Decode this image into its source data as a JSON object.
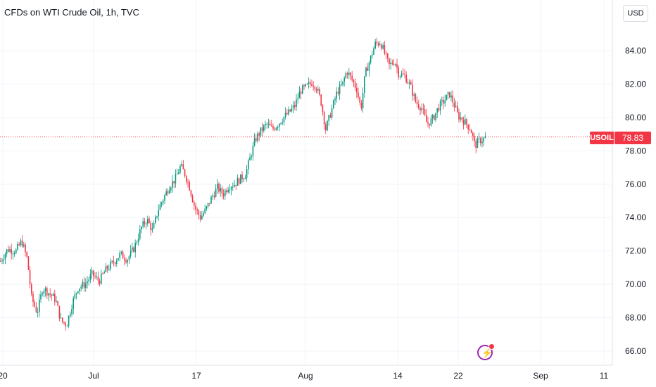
{
  "header": {
    "title": "CFDs on WTI Crude Oil, 1h, TVC",
    "currency_button": "USD"
  },
  "price_axis": {
    "ticks": [
      "84.00",
      "82.00",
      "80.00",
      "78.00",
      "76.00",
      "74.00",
      "72.00",
      "70.00",
      "68.00",
      "66.00"
    ]
  },
  "time_axis": {
    "ticks": [
      "20",
      "Jul",
      "17",
      "Aug",
      "14",
      "22",
      "Sep",
      "11"
    ]
  },
  "last_price": {
    "symbol": "USOIL",
    "value": "78.83"
  },
  "colors": {
    "up": "#089981",
    "down": "#f23645",
    "grid": "#f0f3fa",
    "flash": "#9c27b0"
  },
  "icons": {
    "flash": "lightning-icon"
  },
  "chart_data": {
    "type": "candlestick",
    "title": "CFDs on WTI Crude Oil, 1h, TVC",
    "ylim": [
      65.2,
      85.6
    ],
    "y_ticks": [
      84,
      82,
      80,
      78,
      76,
      74,
      72,
      70,
      68,
      66
    ],
    "x_ticks": [
      "20",
      "Jul",
      "17",
      "Aug",
      "14",
      "22",
      "Sep",
      "11"
    ],
    "last_value": 78.83,
    "grid": true,
    "series_path": [
      [
        0,
        71.4
      ],
      [
        10,
        72.1
      ],
      [
        22,
        72.0
      ],
      [
        30,
        72.6
      ],
      [
        38,
        71.5
      ],
      [
        44,
        69.2
      ],
      [
        52,
        68.3
      ],
      [
        60,
        69.8
      ],
      [
        68,
        69.5
      ],
      [
        78,
        69.1
      ],
      [
        86,
        67.8
      ],
      [
        94,
        67.6
      ],
      [
        102,
        68.9
      ],
      [
        110,
        69.8
      ],
      [
        120,
        70.0
      ],
      [
        130,
        70.6
      ],
      [
        140,
        70.2
      ],
      [
        150,
        70.9
      ],
      [
        160,
        71.3
      ],
      [
        170,
        71.8
      ],
      [
        180,
        71.5
      ],
      [
        190,
        72.2
      ],
      [
        200,
        73.4
      ],
      [
        208,
        73.9
      ],
      [
        216,
        73.2
      ],
      [
        224,
        74.5
      ],
      [
        232,
        75.2
      ],
      [
        240,
        75.9
      ],
      [
        248,
        76.3
      ],
      [
        256,
        77.1
      ],
      [
        262,
        76.6
      ],
      [
        268,
        75.9
      ],
      [
        276,
        74.6
      ],
      [
        284,
        74.0
      ],
      [
        292,
        74.5
      ],
      [
        300,
        75.2
      ],
      [
        308,
        75.8
      ],
      [
        316,
        75.4
      ],
      [
        324,
        75.9
      ],
      [
        332,
        76.0
      ],
      [
        340,
        76.3
      ],
      [
        348,
        76.6
      ],
      [
        356,
        77.8
      ],
      [
        362,
        78.7
      ],
      [
        370,
        79.2
      ],
      [
        378,
        79.6
      ],
      [
        386,
        79.3
      ],
      [
        394,
        79.6
      ],
      [
        402,
        80.0
      ],
      [
        410,
        80.3
      ],
      [
        418,
        80.7
      ],
      [
        426,
        81.6
      ],
      [
        434,
        81.8
      ],
      [
        442,
        82.1
      ],
      [
        448,
        81.9
      ],
      [
        455,
        81.0
      ],
      [
        462,
        79.3
      ],
      [
        470,
        80.4
      ],
      [
        478,
        81.5
      ],
      [
        486,
        82.0
      ],
      [
        492,
        82.8
      ],
      [
        500,
        82.2
      ],
      [
        506,
        81.7
      ],
      [
        512,
        80.5
      ],
      [
        518,
        82.6
      ],
      [
        526,
        83.6
      ],
      [
        532,
        84.4
      ],
      [
        540,
        84.5
      ],
      [
        546,
        83.8
      ],
      [
        552,
        83.1
      ],
      [
        560,
        83.4
      ],
      [
        566,
        82.6
      ],
      [
        574,
        82.5
      ],
      [
        582,
        81.9
      ],
      [
        590,
        80.9
      ],
      [
        598,
        80.6
      ],
      [
        606,
        79.6
      ],
      [
        614,
        79.9
      ],
      [
        622,
        80.6
      ],
      [
        630,
        81.0
      ],
      [
        638,
        81.4
      ],
      [
        644,
        80.8
      ],
      [
        650,
        80.1
      ],
      [
        656,
        79.9
      ],
      [
        662,
        79.6
      ],
      [
        668,
        79.3
      ],
      [
        674,
        78.3
      ],
      [
        680,
        78.6
      ],
      [
        686,
        78.7
      ],
      [
        690,
        78.83
      ]
    ]
  }
}
